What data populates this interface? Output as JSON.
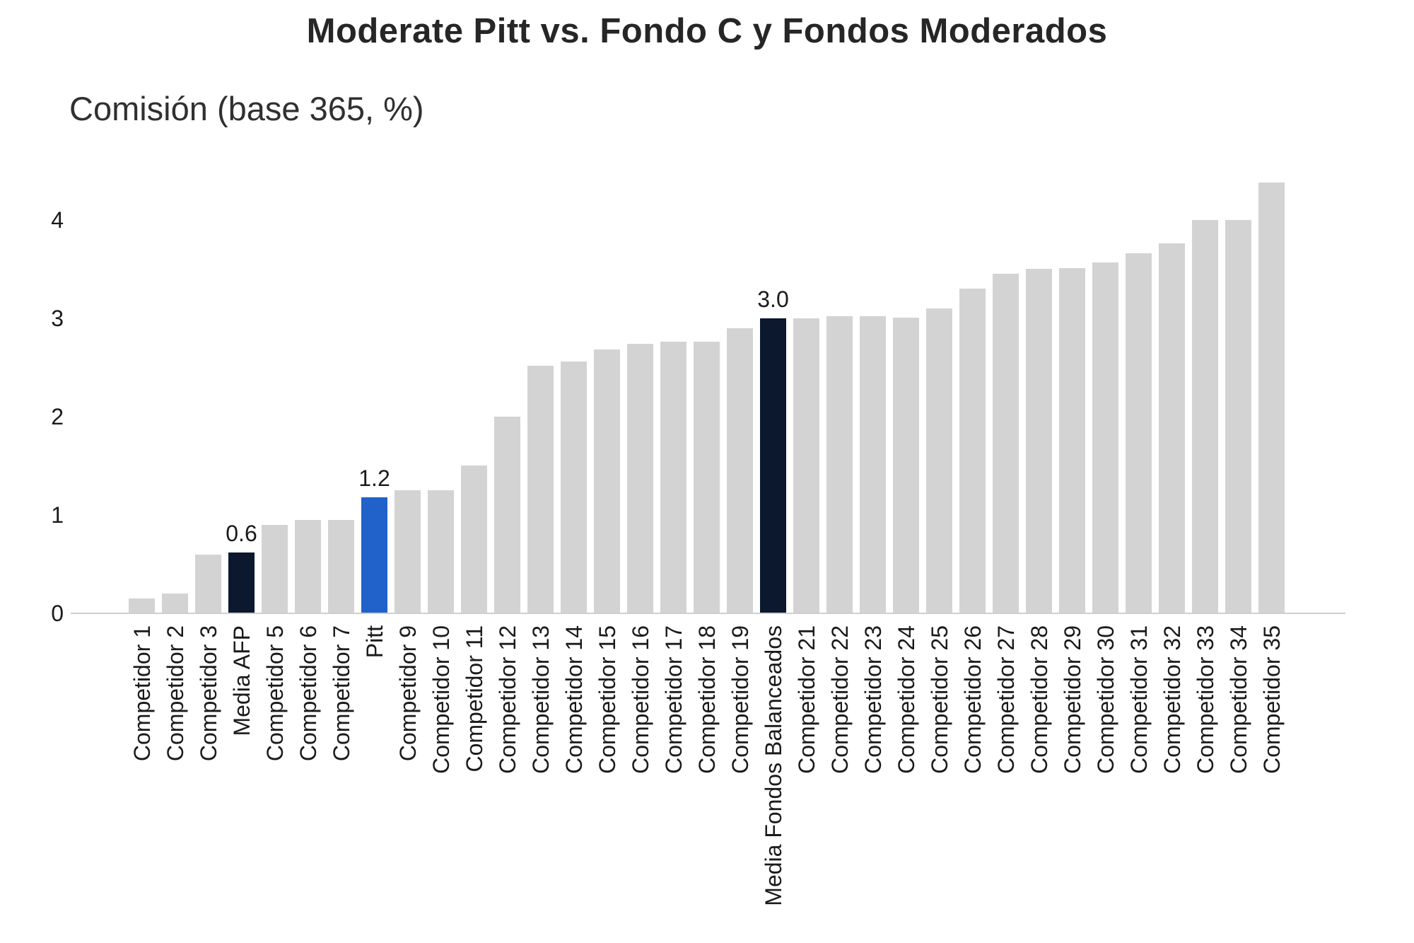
{
  "chart_data": {
    "type": "bar",
    "title": "Moderate Pitt vs. Fondo C y Fondos Moderados",
    "subtitle": "Comisión (base 365, %)",
    "xlabel": "",
    "ylabel": "Comisión (base 365, %)",
    "ylim": [
      0,
      4.5
    ],
    "yticks": [
      0,
      1,
      2,
      3,
      4
    ],
    "ytick_labels": [
      "0",
      "1",
      "2",
      "3",
      "4"
    ],
    "grid": false,
    "legend_position": "none",
    "colors": {
      "gray": "#d3d3d3",
      "navy": "#0b182e",
      "blue": "#2161ca",
      "axis_line": "#cfcfcf",
      "text": "#1a1a1a"
    },
    "bars": [
      {
        "label": "Competidor 1",
        "value": 0.15,
        "color": "gray"
      },
      {
        "label": "Competidor 2",
        "value": 0.2,
        "color": "gray"
      },
      {
        "label": "Competidor 3",
        "value": 0.6,
        "color": "gray"
      },
      {
        "label": "Media AFP",
        "value": 0.62,
        "color": "navy",
        "value_label": "0.6"
      },
      {
        "label": "Competidor 5",
        "value": 0.9,
        "color": "gray"
      },
      {
        "label": "Competidor 6",
        "value": 0.95,
        "color": "gray"
      },
      {
        "label": "Competidor 7",
        "value": 0.95,
        "color": "gray"
      },
      {
        "label": "Pitt",
        "value": 1.18,
        "color": "blue",
        "value_label": "1.2"
      },
      {
        "label": "Competidor 9",
        "value": 1.25,
        "color": "gray"
      },
      {
        "label": "Competidor 10",
        "value": 1.25,
        "color": "gray"
      },
      {
        "label": "Competidor 11",
        "value": 1.5,
        "color": "gray"
      },
      {
        "label": "Competidor 12",
        "value": 2.0,
        "color": "gray"
      },
      {
        "label": "Competidor 13",
        "value": 2.52,
        "color": "gray"
      },
      {
        "label": "Competidor 14",
        "value": 2.56,
        "color": "gray"
      },
      {
        "label": "Competidor 15",
        "value": 2.68,
        "color": "gray"
      },
      {
        "label": "Competidor 16",
        "value": 2.74,
        "color": "gray"
      },
      {
        "label": "Competidor 17",
        "value": 2.76,
        "color": "gray"
      },
      {
        "label": "Competidor 18",
        "value": 2.76,
        "color": "gray"
      },
      {
        "label": "Competidor 19",
        "value": 2.9,
        "color": "gray"
      },
      {
        "label": "Media Fondos Balanceados",
        "value": 3.0,
        "color": "navy",
        "value_label": "3.0"
      },
      {
        "label": "Competidor 21",
        "value": 3.0,
        "color": "gray"
      },
      {
        "label": "Competidor 22",
        "value": 3.02,
        "color": "gray"
      },
      {
        "label": "Competidor 23",
        "value": 3.02,
        "color": "gray"
      },
      {
        "label": "Competidor 24",
        "value": 3.01,
        "color": "gray"
      },
      {
        "label": "Competidor 25",
        "value": 3.1,
        "color": "gray"
      },
      {
        "label": "Competidor 26",
        "value": 3.3,
        "color": "gray"
      },
      {
        "label": "Competidor 27",
        "value": 3.45,
        "color": "gray"
      },
      {
        "label": "Competidor 28",
        "value": 3.5,
        "color": "gray"
      },
      {
        "label": "Competidor 29",
        "value": 3.51,
        "color": "gray"
      },
      {
        "label": "Competidor 30",
        "value": 3.57,
        "color": "gray"
      },
      {
        "label": "Competidor 31",
        "value": 3.66,
        "color": "gray"
      },
      {
        "label": "Competidor 32",
        "value": 3.76,
        "color": "gray"
      },
      {
        "label": "Competidor 33",
        "value": 4.0,
        "color": "gray"
      },
      {
        "label": "Competidor 34",
        "value": 4.0,
        "color": "gray"
      },
      {
        "label": "Competidor 35",
        "value": 4.38,
        "color": "gray"
      }
    ]
  }
}
